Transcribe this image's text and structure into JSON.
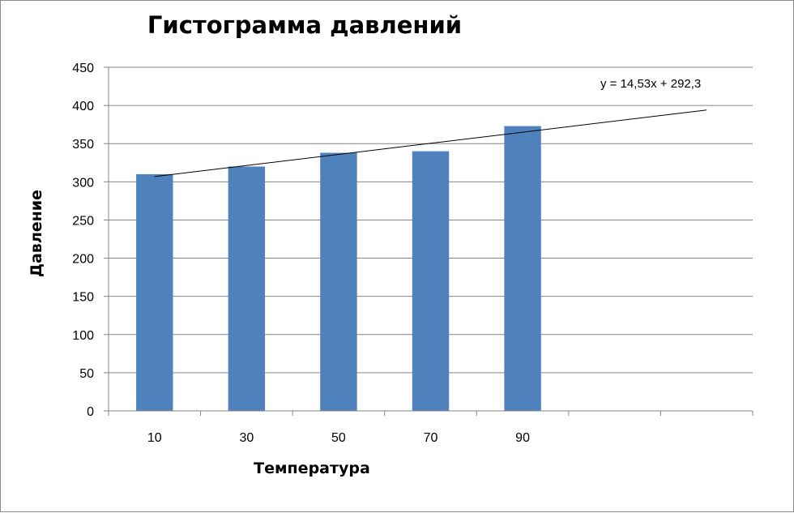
{
  "chart_data": {
    "type": "bar",
    "title": "Гистограмма давлений",
    "xlabel": "Температура",
    "ylabel": "Давление",
    "categories": [
      "10",
      "30",
      "50",
      "70",
      "90",
      "",
      ""
    ],
    "values": [
      310,
      320,
      338,
      340,
      373,
      null,
      null
    ],
    "ylim": [
      0,
      450
    ],
    "yticks": [
      0,
      50,
      100,
      150,
      200,
      250,
      300,
      350,
      400,
      450
    ],
    "grid": true,
    "legend": "none",
    "bar_color": "#4f81bd",
    "trendline": {
      "type": "linear",
      "slope": 14.53,
      "intercept": 292.3,
      "label": "y = 14,53x + 292,3",
      "color": "#000000"
    }
  }
}
